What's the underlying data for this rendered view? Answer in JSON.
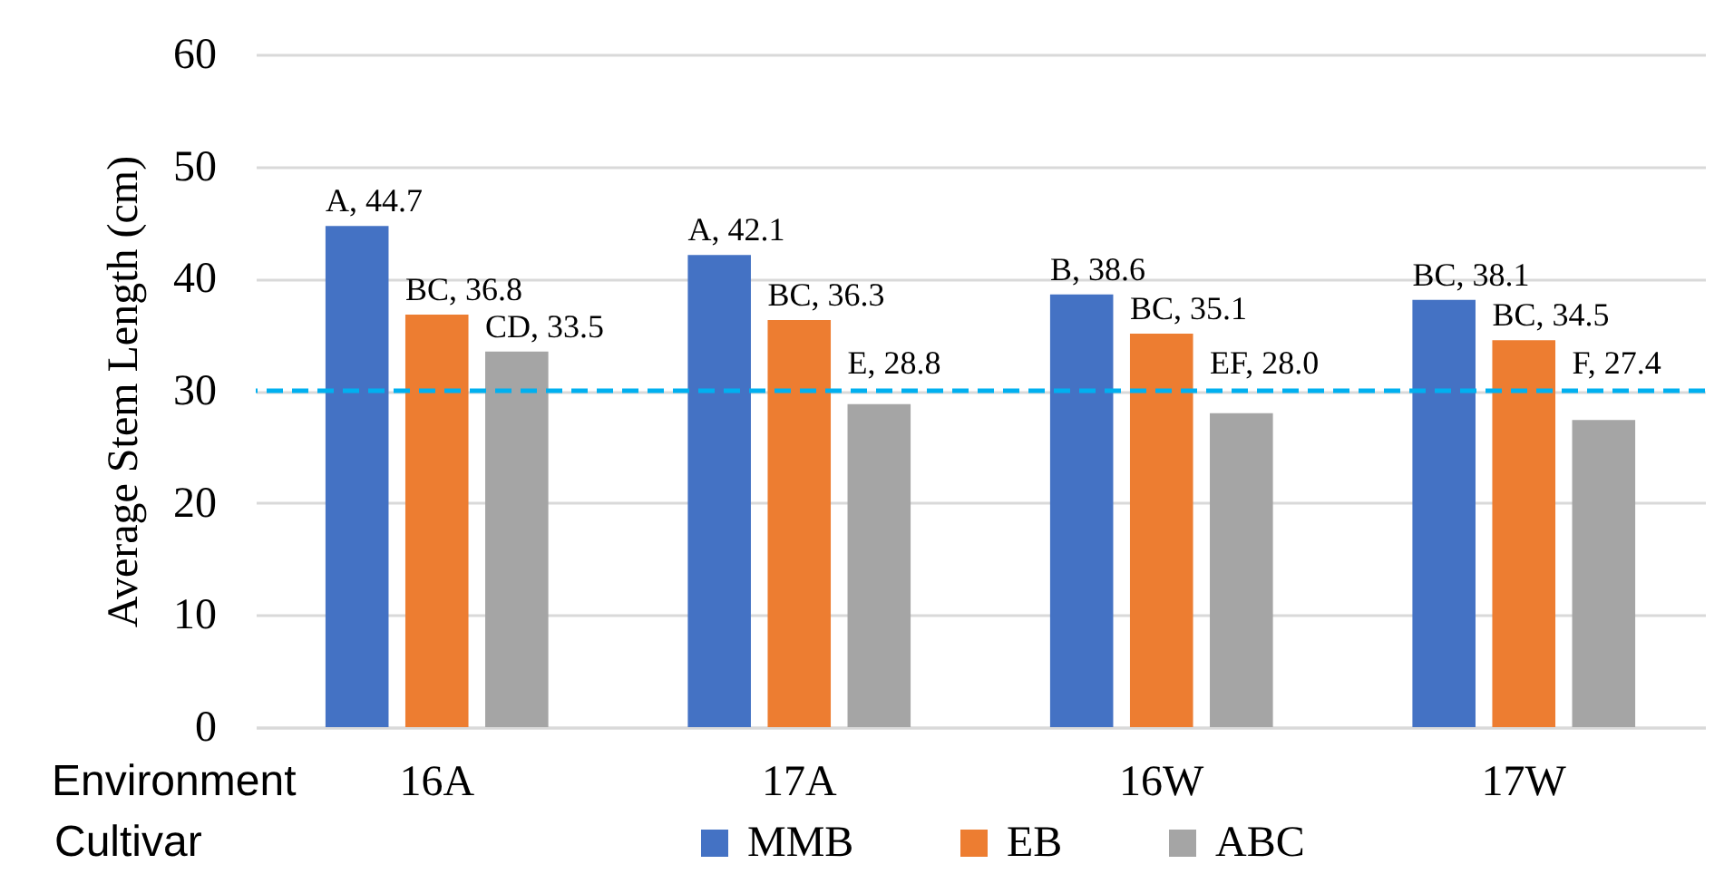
{
  "chart_data": {
    "type": "bar",
    "xlabel": "Environment",
    "ylabel": "Average Stem Length (cm)",
    "legend_title": "Cultivar",
    "categories": [
      "16A",
      "17A",
      "16W",
      "17W"
    ],
    "series": [
      {
        "name": "MMB",
        "color": "#4472c4",
        "values": [
          44.7,
          42.1,
          38.6,
          38.1
        ],
        "value_labels": [
          "A, 44.7",
          "A, 42.1",
          "B, 38.6",
          "BC, 38.1"
        ]
      },
      {
        "name": "EB",
        "color": "#ed7d31",
        "values": [
          36.8,
          36.3,
          35.1,
          34.5
        ],
        "value_labels": [
          "BC, 36.8",
          "BC, 36.3",
          "BC, 35.1",
          "BC, 34.5"
        ]
      },
      {
        "name": "ABC",
        "color": "#a5a5a5",
        "values": [
          33.5,
          28.8,
          28.0,
          27.4
        ],
        "value_labels": [
          "CD, 33.5",
          "E, 28.8",
          "EF, 28.0",
          "F, 27.4"
        ]
      }
    ],
    "ylim": [
      0,
      60
    ],
    "yticks": [
      0,
      10,
      20,
      30,
      40,
      50,
      60
    ],
    "grid": "y",
    "legend": "bottom",
    "ref_lines": [
      {
        "axis": "y",
        "value": 30,
        "color": "#00b0f0",
        "line_style": "dashed"
      }
    ]
  }
}
